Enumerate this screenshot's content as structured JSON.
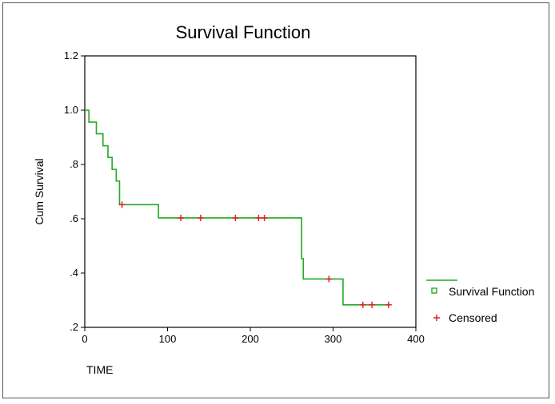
{
  "chart_data": {
    "type": "line",
    "title": "Survival Function",
    "xlabel": "TIME",
    "ylabel": "Cum Survival",
    "xlim": [
      0,
      400
    ],
    "ylim": [
      0.2,
      1.2
    ],
    "x_ticks": [
      0,
      100,
      200,
      300,
      400
    ],
    "x_tick_labels": [
      "0",
      "100",
      "200",
      "300",
      "400"
    ],
    "y_ticks": [
      0.2,
      0.4,
      0.6,
      0.8,
      1.0,
      1.2
    ],
    "y_tick_labels": [
      ".2",
      ".4",
      ".6",
      ".8",
      "1.0",
      "1.2"
    ],
    "grid": false,
    "legend_position": "right",
    "colors": {
      "survival": "#22aa22",
      "censored": "#dd2222"
    },
    "series": [
      {
        "name": "Survival Function",
        "step": true,
        "x": [
          0,
          5,
          14,
          22,
          28,
          33,
          38,
          42,
          45,
          89,
          262,
          264,
          270,
          312,
          367
        ],
        "y": [
          1.0,
          0.956,
          0.913,
          0.869,
          0.826,
          0.782,
          0.739,
          0.652,
          0.652,
          0.603,
          0.453,
          0.378,
          0.378,
          0.283,
          0.283
        ]
      },
      {
        "name": "Censored",
        "x": [
          45,
          116,
          140,
          182,
          210,
          217,
          295,
          336,
          347,
          367
        ],
        "y": [
          0.652,
          0.603,
          0.603,
          0.603,
          0.603,
          0.603,
          0.378,
          0.283,
          0.283,
          0.283
        ]
      }
    ]
  }
}
